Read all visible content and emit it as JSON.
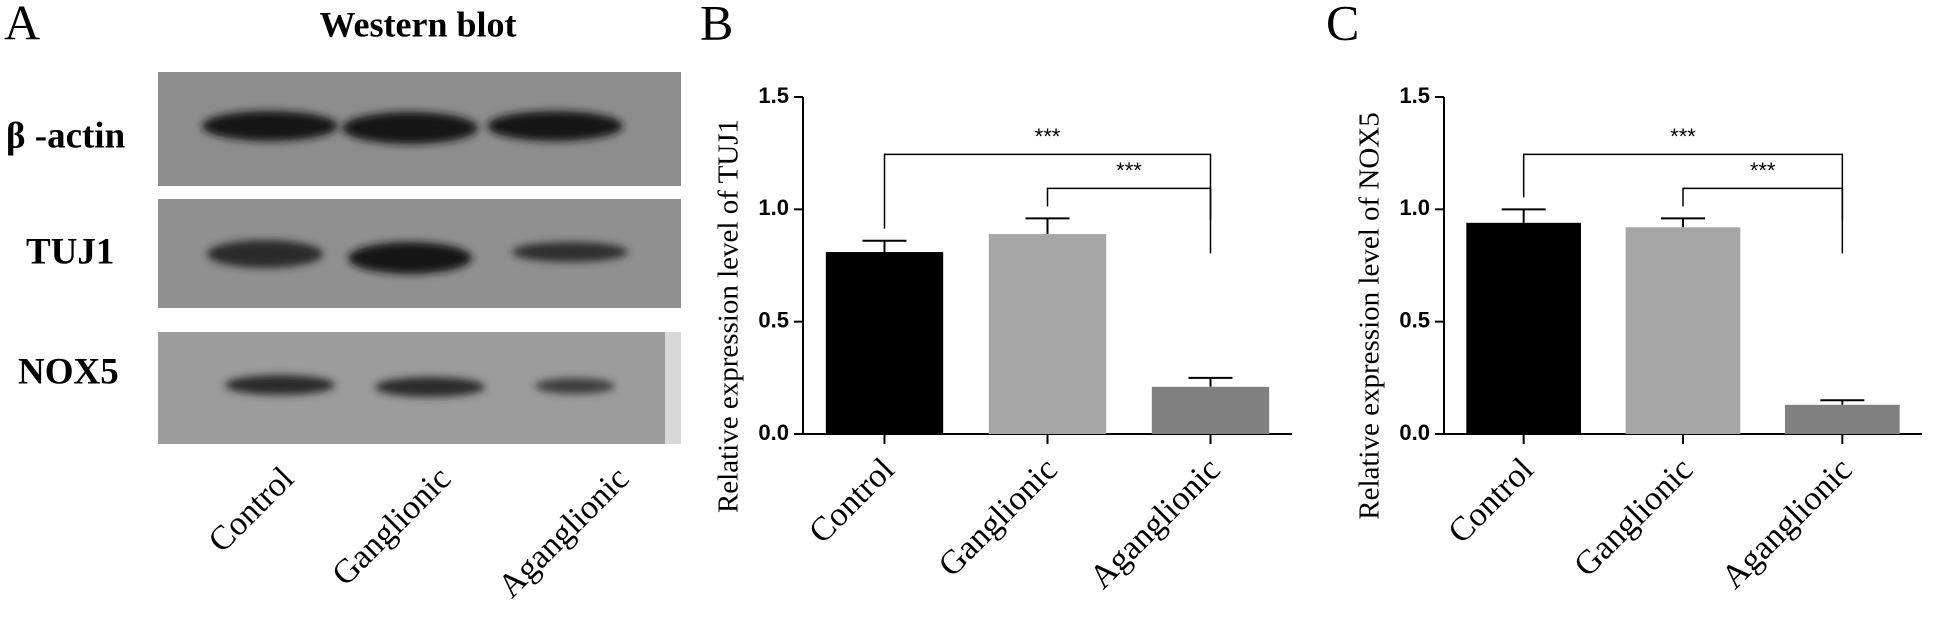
{
  "western_blot": {
    "panel": "A",
    "title": "Western blot",
    "rows": [
      "β -actin",
      "TUJ1",
      "NOX5"
    ],
    "lanes": [
      "Control",
      "Ganglionic",
      "Aganglionic"
    ]
  },
  "chart_data": [
    {
      "type": "bar",
      "panel": "B",
      "ylabel": "Relative expression level of TUJ1",
      "categories": [
        "Control",
        "Ganglionic",
        "Aganglionic"
      ],
      "values": [
        0.81,
        0.89,
        0.21
      ],
      "errors": [
        0.05,
        0.07,
        0.04
      ],
      "colors": [
        "#000000",
        "#a6a6a6",
        "#808080"
      ],
      "ylim": [
        0,
        1.5
      ],
      "yticks": [
        {
          "value": 0,
          "label": "0.0"
        },
        0.5,
        {
          "value": 1,
          "label": "1.0"
        },
        1.5
      ],
      "significance": [
        {
          "text": "***",
          "pair": [
            1,
            2
          ]
        },
        {
          "text": "***",
          "pair": [
            0,
            2
          ]
        }
      ]
    },
    {
      "type": "bar",
      "panel": "C",
      "ylabel": "Relative expression level of NOX5",
      "categories": [
        "Control",
        "Ganglionic",
        "Aganglionic"
      ],
      "values": [
        0.94,
        0.92,
        0.13
      ],
      "errors": [
        0.06,
        0.04,
        0.02
      ],
      "colors": [
        "#000000",
        "#a6a6a6",
        "#808080"
      ],
      "ylim": [
        0,
        1.5
      ],
      "yticks": [
        {
          "value": 0,
          "label": "0.0"
        },
        0.5,
        {
          "value": 1,
          "label": "1.0"
        },
        1.5
      ],
      "significance": [
        {
          "text": "***",
          "pair": [
            1,
            2
          ]
        },
        {
          "text": "***",
          "pair": [
            0,
            2
          ]
        }
      ]
    }
  ]
}
